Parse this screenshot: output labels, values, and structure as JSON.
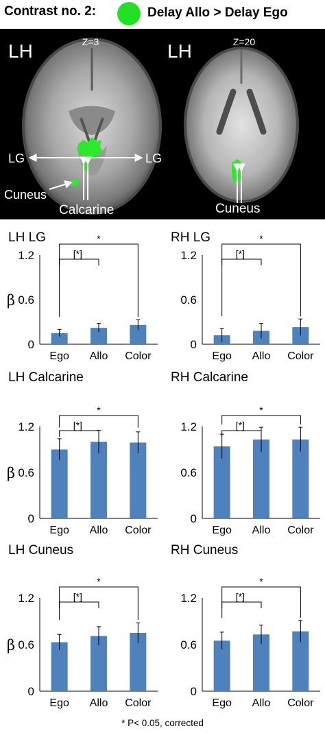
{
  "header": {
    "title": "Contrast no. 2:",
    "contrast_label": "Delay Allo > Delay Ego",
    "marker_color": "#22e022"
  },
  "brain_images": [
    {
      "hemisphere_label": "LH",
      "slice_label": "Z=3",
      "region_labels": [
        "LG",
        "LG",
        "Cuneus",
        "Calcarine"
      ]
    },
    {
      "hemisphere_label": "LH",
      "slice_label": "Z=20",
      "region_labels": [
        "Cuneus"
      ]
    }
  ],
  "bar_color": "#4f81bd",
  "chart_data": [
    {
      "type": "bar",
      "title": "LH LG",
      "ylabel": "β",
      "categories": [
        "Ego",
        "Allo",
        "Color"
      ],
      "values": [
        0.15,
        0.22,
        0.26
      ],
      "errors": [
        0.05,
        0.06,
        0.07
      ],
      "ylim": [
        0,
        1.2
      ],
      "yticks": [
        "0",
        "0.6",
        "1.2"
      ],
      "significance": [
        {
          "from": "Ego",
          "to": "Allo",
          "label": "[*]"
        },
        {
          "from": "Ego",
          "to": "Color",
          "label": "*"
        }
      ]
    },
    {
      "type": "bar",
      "title": "RH LG",
      "ylabel": "",
      "categories": [
        "Ego",
        "Allo",
        "Color"
      ],
      "values": [
        0.12,
        0.18,
        0.23
      ],
      "errors": [
        0.09,
        0.1,
        0.11
      ],
      "ylim": [
        0,
        1.2
      ],
      "yticks": [
        "0",
        "0.6",
        "1.2"
      ],
      "significance": [
        {
          "from": "Ego",
          "to": "Allo",
          "label": "[*]"
        },
        {
          "from": "Ego",
          "to": "Color",
          "label": "*"
        }
      ]
    },
    {
      "type": "bar",
      "title": "LH Calcarine",
      "ylabel": "β",
      "categories": [
        "Ego",
        "Allo",
        "Color"
      ],
      "values": [
        0.9,
        1.0,
        0.99
      ],
      "errors": [
        0.14,
        0.15,
        0.14
      ],
      "ylim": [
        0,
        1.2
      ],
      "yticks": [
        "0",
        "0.6",
        "1.2"
      ],
      "significance": [
        {
          "from": "Ego",
          "to": "Allo",
          "label": "[*]"
        },
        {
          "from": "Ego",
          "to": "Color",
          "label": "*"
        }
      ]
    },
    {
      "type": "bar",
      "title": "RH Calcarine",
      "ylabel": "",
      "categories": [
        "Ego",
        "Allo",
        "Color"
      ],
      "values": [
        0.94,
        1.03,
        1.03
      ],
      "errors": [
        0.16,
        0.16,
        0.16
      ],
      "ylim": [
        0,
        1.2
      ],
      "yticks": [
        "0",
        "0.6",
        "1.2"
      ],
      "significance": [
        {
          "from": "Ego",
          "to": "Allo",
          "label": "[*]"
        },
        {
          "from": "Ego",
          "to": "Color",
          "label": "*"
        }
      ]
    },
    {
      "type": "bar",
      "title": "LH Cuneus",
      "ylabel": "β",
      "categories": [
        "Ego",
        "Allo",
        "Color"
      ],
      "values": [
        0.63,
        0.71,
        0.75
      ],
      "errors": [
        0.1,
        0.12,
        0.13
      ],
      "ylim": [
        0,
        1.2
      ],
      "yticks": [
        "0",
        "0.6",
        "1.2"
      ],
      "significance": [
        {
          "from": "Ego",
          "to": "Allo",
          "label": "[*]"
        },
        {
          "from": "Ego",
          "to": "Color",
          "label": "*"
        }
      ]
    },
    {
      "type": "bar",
      "title": "RH Cuneus",
      "ylabel": "",
      "categories": [
        "Ego",
        "Allo",
        "Color"
      ],
      "values": [
        0.65,
        0.73,
        0.77
      ],
      "errors": [
        0.11,
        0.12,
        0.14
      ],
      "ylim": [
        0,
        1.2
      ],
      "yticks": [
        "0",
        "0.6",
        "1.2"
      ],
      "significance": [
        {
          "from": "Ego",
          "to": "Allo",
          "label": "[*]"
        },
        {
          "from": "Ego",
          "to": "Color",
          "label": "*"
        }
      ]
    }
  ],
  "footnote": "* P< 0.05, corrected"
}
